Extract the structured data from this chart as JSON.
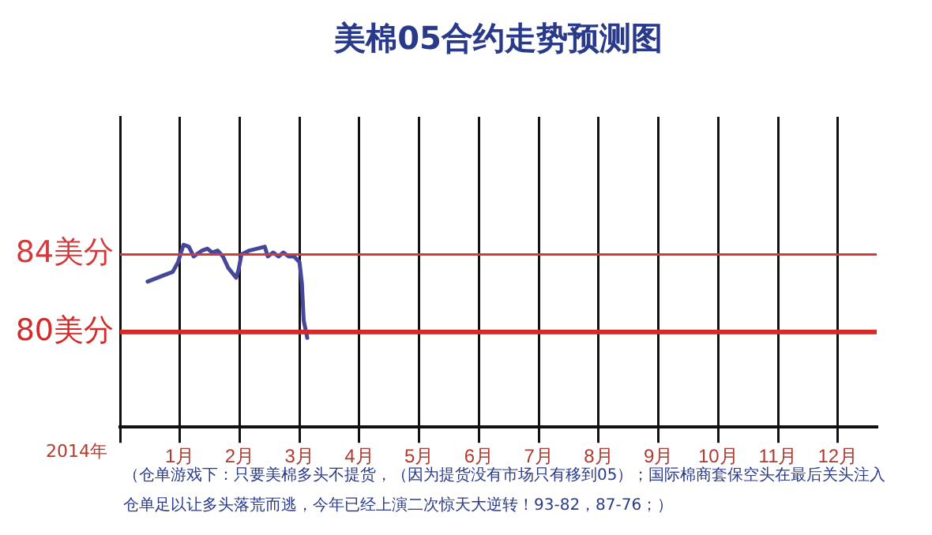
{
  "chart_data": {
    "type": "line",
    "title": "美棉05合约走势预测图",
    "xlabel": "2014年",
    "xlim": [
      0,
      12.65
    ],
    "xticks": [
      {
        "value": 0,
        "label": null
      },
      {
        "value": 1,
        "label": "1月"
      },
      {
        "value": 2,
        "label": "2月"
      },
      {
        "value": 3,
        "label": "3月"
      },
      {
        "value": 4,
        "label": "4月"
      },
      {
        "value": 5,
        "label": "5月"
      },
      {
        "value": 6,
        "label": "6月"
      },
      {
        "value": 7,
        "label": "7月"
      },
      {
        "value": 8,
        "label": "8月"
      },
      {
        "value": 9,
        "label": "9月"
      },
      {
        "value": 10,
        "label": "10月"
      },
      {
        "value": 11,
        "label": "11月"
      },
      {
        "value": 12,
        "label": "12月"
      }
    ],
    "ylim": [
      75.1,
      91.1
    ],
    "tick_labels": "x",
    "grid": "x",
    "legend": false,
    "marker": "none",
    "line_style": "solid",
    "series": [
      {
        "color": "#46469a",
        "x": [
          0.46,
          0.79,
          0.88,
          0.97,
          1.06,
          1.15,
          1.23,
          1.37,
          1.46,
          1.54,
          1.63,
          1.72,
          1.81,
          1.94,
          1.98,
          2.03,
          2.16,
          2.42,
          2.47,
          2.56,
          2.65,
          2.73,
          2.82,
          2.91,
          3.0,
          3.04,
          3.07,
          3.13
        ],
        "values": [
          82.6,
          83.0,
          83.1,
          83.6,
          84.5,
          84.4,
          83.9,
          84.2,
          84.3,
          84.1,
          84.2,
          83.9,
          83.3,
          82.8,
          83.2,
          84.0,
          84.2,
          84.4,
          83.9,
          84.1,
          83.9,
          84.1,
          83.9,
          83.9,
          83.6,
          82.5,
          80.6,
          79.7
        ]
      }
    ],
    "ref_lines": [
      {
        "axis": "y",
        "value": 84,
        "label": "84美分",
        "color": "#d43a3a"
      },
      {
        "axis": "y",
        "value": 80,
        "label": "80美分",
        "color": "#d42a2a"
      }
    ],
    "annotations": [
      "（仓单游戏下：只要美棉多头不提货，（因为提货没有市场只有移到05）；国际棉商套保空头在最后关头注入仓单足以让多头落荒而逃，今年已经上演二次惊天大逆转！93-82，87-76；）"
    ]
  }
}
